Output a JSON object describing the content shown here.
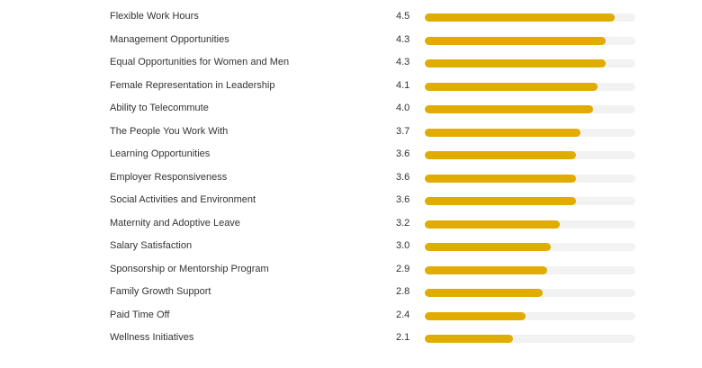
{
  "chart_data": {
    "type": "bar",
    "orientation": "horizontal",
    "xlim": [
      0,
      5
    ],
    "bar_color": "#e0ac00",
    "track_color": "#f2f2f2",
    "categories": [
      "Flexible Work Hours",
      "Management Opportunities",
      "Equal Opportunities for Women and Men",
      "Female Representation in Leadership",
      "Ability to Telecommute",
      "The People You Work With",
      "Learning Opportunities",
      "Employer Responsiveness",
      "Social Activities and Environment",
      "Maternity and Adoptive Leave",
      "Salary Satisfaction",
      "Sponsorship or Mentorship Program",
      "Family Growth Support",
      "Paid Time Off",
      "Wellness Initiatives"
    ],
    "values": [
      "4.5",
      "4.3",
      "4.3",
      "4.1",
      "4.0",
      "3.7",
      "3.6",
      "3.6",
      "3.6",
      "3.2",
      "3.0",
      "2.9",
      "2.8",
      "2.4",
      "2.1"
    ]
  }
}
